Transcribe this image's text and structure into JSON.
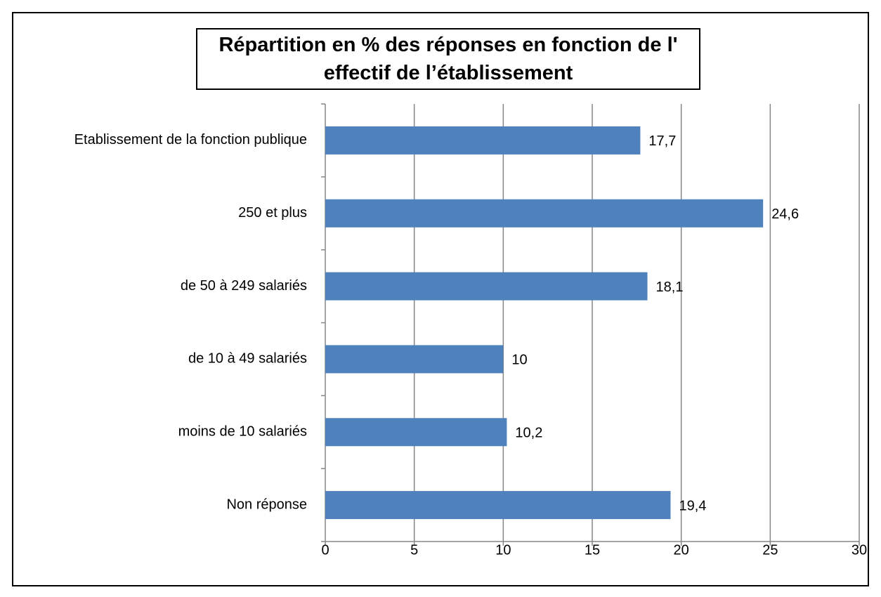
{
  "chart_data": {
    "type": "bar",
    "orientation": "horizontal",
    "title": "Répartition en % des réponses en fonction de l' effectif de l’établissement",
    "categories": [
      "Etablissement de la fonction publique",
      "250 et plus",
      "de 50 à 249 salariés",
      "de 10 à 49 salariés",
      "moins de 10 salariés",
      "Non réponse"
    ],
    "values": [
      17.7,
      24.6,
      18.1,
      10,
      10.2,
      19.4
    ],
    "value_labels": [
      "17,7",
      "24,6",
      "18,1",
      "10",
      "10,2",
      "19,4"
    ],
    "color": "#4f81bd",
    "xlim": [
      0,
      30
    ],
    "xticks": [
      0,
      5,
      10,
      15,
      20,
      25,
      30
    ],
    "grid": true
  }
}
